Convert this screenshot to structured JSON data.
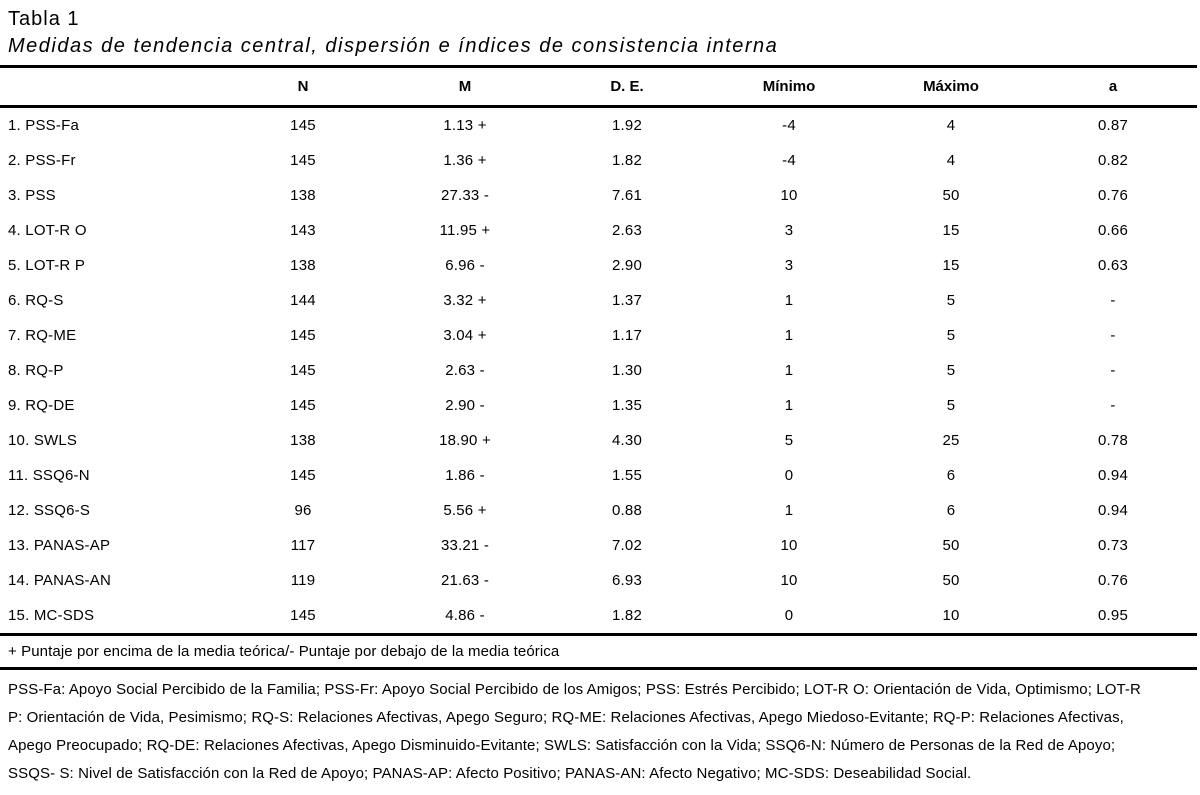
{
  "page": {
    "label": "Tabla 1",
    "title": "Medidas de tendencia central, dispersión e índices de consistencia interna"
  },
  "table": {
    "columns": [
      "N",
      "M",
      "D. E.",
      "Mínimo",
      "Máximo",
      "a"
    ],
    "rows": [
      {
        "label": "1. PSS-Fa",
        "n": "145",
        "m": "1.13 +",
        "de": "1.92",
        "min": "-4",
        "max": "4",
        "a": "0.87"
      },
      {
        "label": "2. PSS-Fr",
        "n": "145",
        "m": "1.36 +",
        "de": "1.82",
        "min": "-4",
        "max": "4",
        "a": "0.82"
      },
      {
        "label": "3. PSS",
        "n": "138",
        "m": "27.33 -",
        "de": "7.61",
        "min": "10",
        "max": "50",
        "a": "0.76"
      },
      {
        "label": "4. LOT-R O",
        "n": "143",
        "m": "11.95 +",
        "de": "2.63",
        "min": "3",
        "max": "15",
        "a": "0.66"
      },
      {
        "label": "5. LOT-R P",
        "n": "138",
        "m": "6.96 -",
        "de": "2.90",
        "min": "3",
        "max": "15",
        "a": "0.63"
      },
      {
        "label": "6. RQ-S",
        "n": "144",
        "m": "3.32 +",
        "de": "1.37",
        "min": "1",
        "max": "5",
        "a": "-"
      },
      {
        "label": "7. RQ-ME",
        "n": "145",
        "m": "3.04 +",
        "de": "1.17",
        "min": "1",
        "max": "5",
        "a": "-"
      },
      {
        "label": "8. RQ-P",
        "n": "145",
        "m": "2.63 -",
        "de": "1.30",
        "min": "1",
        "max": "5",
        "a": "-"
      },
      {
        "label": "9. RQ-DE",
        "n": "145",
        "m": "2.90 -",
        "de": "1.35",
        "min": "1",
        "max": "5",
        "a": "-"
      },
      {
        "label": "10. SWLS",
        "n": "138",
        "m": "18.90 +",
        "de": "4.30",
        "min": "5",
        "max": "25",
        "a": "0.78"
      },
      {
        "label": "11. SSQ6-N",
        "n": "145",
        "m": "1.86 -",
        "de": "1.55",
        "min": "0",
        "max": "6",
        "a": "0.94"
      },
      {
        "label": "12. SSQ6-S",
        "n": "96",
        "m": "5.56 +",
        "de": "0.88",
        "min": "1",
        "max": "6",
        "a": "0.94"
      },
      {
        "label": "13. PANAS-AP",
        "n": "117",
        "m": "33.21 -",
        "de": "7.02",
        "min": "10",
        "max": "50",
        "a": "0.73"
      },
      {
        "label": "14. PANAS-AN",
        "n": "119",
        "m": "21.63 -",
        "de": "6.93",
        "min": "10",
        "max": "50",
        "a": "0.76"
      },
      {
        "label": "15. MC-SDS",
        "n": "145",
        "m": "4.86 -",
        "de": "1.82",
        "min": "0",
        "max": "10",
        "a": "0.95"
      }
    ],
    "footnote": "+ Puntaje por encima de la media teórica/- Puntaje por debajo de la media teórica",
    "note_lines": [
      "PSS-Fa: Apoyo Social Percibido de la Familia; PSS-Fr: Apoyo Social Percibido de los Amigos; PSS: Estrés Percibido; LOT-R O: Orientación de Vida, Optimismo; LOT-R",
      "P: Orientación de Vida, Pesimismo; RQ-S: Relaciones Afectivas, Apego Seguro; RQ-ME: Relaciones Afectivas, Apego Miedoso-Evitante; RQ-P: Relaciones Afectivas,",
      "Apego Preocupado; RQ-DE: Relaciones Afectivas, Apego Disminuido-Evitante; SWLS: Satisfacción con la Vida; SSQ6-N: Número de Personas de la Red de Apoyo;",
      "SSQS- S: Nivel de Satisfacción con la Red de Apoyo; PANAS-AP: Afecto Positivo; PANAS-AN: Afecto Negativo; MC-SDS: Deseabilidad Social."
    ]
  },
  "colors": {
    "text": "#000000",
    "background": "#ffffff"
  }
}
